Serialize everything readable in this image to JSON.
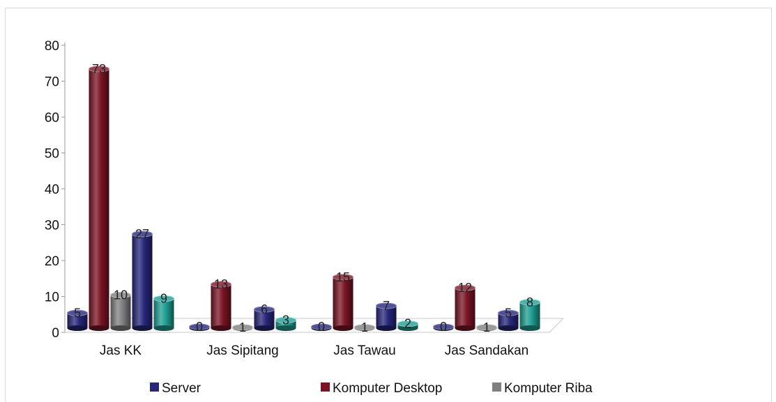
{
  "chart_data": {
    "type": "bar",
    "title": "",
    "xlabel": "",
    "ylabel": "",
    "categories": [
      "Jas KK",
      "Jas Sipitang",
      "Jas Tawau",
      "Jas Sandakan"
    ],
    "ylim": [
      0,
      80
    ],
    "yticks": [
      "0",
      "10",
      "20",
      "30",
      "40",
      "50",
      "60",
      "70",
      "80"
    ],
    "series": [
      {
        "name": "Server",
        "values": [
          5,
          0,
          0,
          0
        ],
        "color": "#27267a"
      },
      {
        "name": "Komputer Desktop",
        "values": [
          73,
          13,
          15,
          12
        ],
        "color": "#7a1424"
      },
      {
        "name": "Komputer Riba",
        "values": [
          10,
          1,
          1,
          1
        ],
        "color": "#7f7f7f"
      },
      {
        "name": "",
        "values": [
          27,
          6,
          7,
          5
        ],
        "color": "#27267a"
      },
      {
        "name": "",
        "values": [
          9,
          3,
          2,
          8
        ],
        "color": "#1f9e92"
      }
    ],
    "legend": {
      "position": "bottom",
      "visible_entries": [
        "Server",
        "Komputer Desktop",
        "Komputer Riba"
      ]
    },
    "grid": false,
    "style": "3d-cylinder"
  }
}
